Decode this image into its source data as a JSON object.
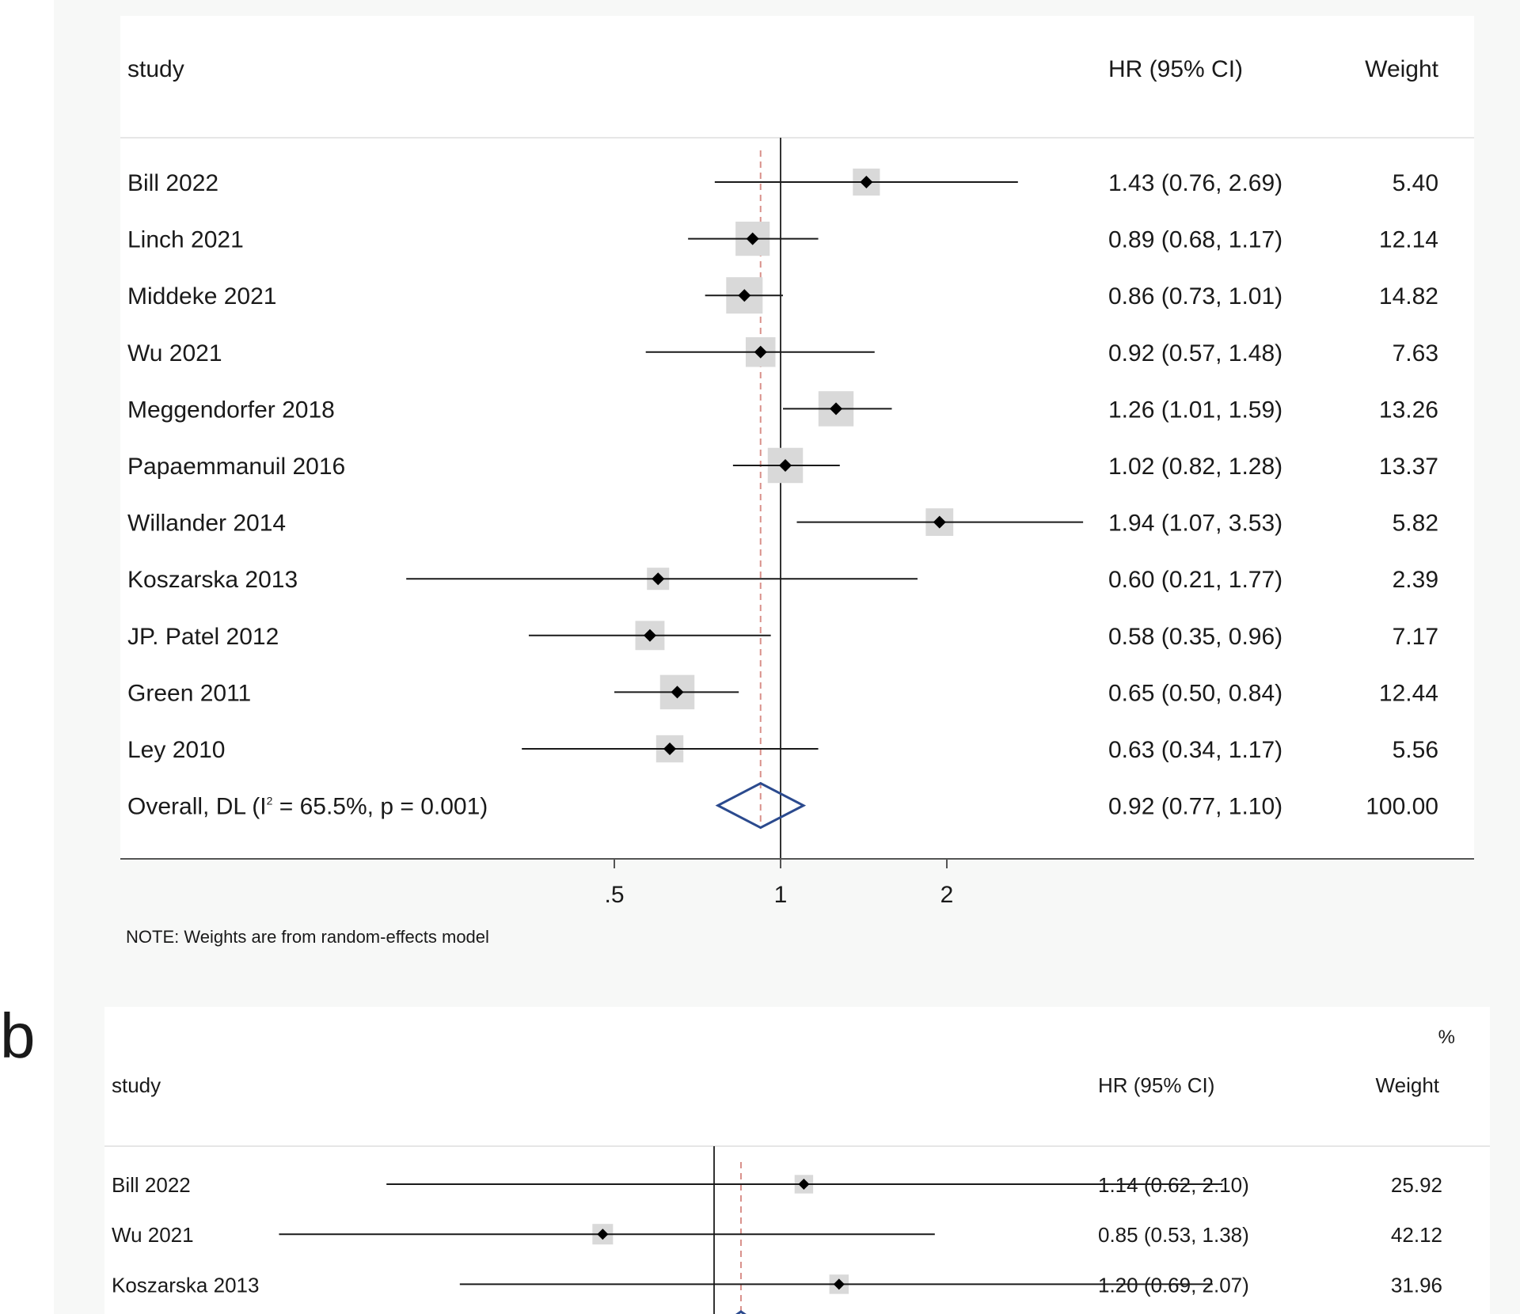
{
  "panel_b_letter": "b",
  "chart_data": [
    {
      "type": "forest",
      "x_scale": "log",
      "headers": {
        "study": "study",
        "effect": "HR (95% CI)",
        "weight": "Weight"
      },
      "null_line": 1,
      "overall_line": 0.92,
      "xticks": [
        {
          "value": 0.5,
          "label": ".5"
        },
        {
          "value": 1,
          "label": "1"
        },
        {
          "value": 2,
          "label": "2"
        }
      ],
      "studies": [
        {
          "name": "Bill 2022",
          "hr": 1.43,
          "lo": 0.76,
          "hi": 2.69,
          "ci_text": "1.43 (0.76, 2.69)",
          "weight": 5.4,
          "weight_text": "5.40"
        },
        {
          "name": "Linch 2021",
          "hr": 0.89,
          "lo": 0.68,
          "hi": 1.17,
          "ci_text": "0.89 (0.68, 1.17)",
          "weight": 12.14,
          "weight_text": "12.14"
        },
        {
          "name": "Middeke 2021",
          "hr": 0.86,
          "lo": 0.73,
          "hi": 1.01,
          "ci_text": "0.86 (0.73, 1.01)",
          "weight": 14.82,
          "weight_text": "14.82"
        },
        {
          "name": "Wu 2021",
          "hr": 0.92,
          "lo": 0.57,
          "hi": 1.48,
          "ci_text": "0.92 (0.57, 1.48)",
          "weight": 7.63,
          "weight_text": "7.63"
        },
        {
          "name": "Meggendorfer 2018",
          "hr": 1.26,
          "lo": 1.01,
          "hi": 1.59,
          "ci_text": "1.26 (1.01, 1.59)",
          "weight": 13.26,
          "weight_text": "13.26"
        },
        {
          "name": "Papaemmanuil 2016",
          "hr": 1.02,
          "lo": 0.82,
          "hi": 1.28,
          "ci_text": "1.02 (0.82, 1.28)",
          "weight": 13.37,
          "weight_text": "13.37"
        },
        {
          "name": "Willander 2014",
          "hr": 1.94,
          "lo": 1.07,
          "hi": 3.53,
          "ci_text": "1.94 (1.07, 3.53)",
          "weight": 5.82,
          "weight_text": "5.82"
        },
        {
          "name": "Koszarska 2013",
          "hr": 0.6,
          "lo": 0.21,
          "hi": 1.77,
          "ci_text": "0.60 (0.21, 1.77)",
          "weight": 2.39,
          "weight_text": "2.39"
        },
        {
          "name": "JP. Patel 2012",
          "hr": 0.58,
          "lo": 0.35,
          "hi": 0.96,
          "ci_text": "0.58 (0.35, 0.96)",
          "weight": 7.17,
          "weight_text": "7.17"
        },
        {
          "name": "Green 2011",
          "hr": 0.65,
          "lo": 0.5,
          "hi": 0.84,
          "ci_text": "0.65 (0.50, 0.84)",
          "weight": 12.44,
          "weight_text": "12.44"
        },
        {
          "name": "Ley 2010",
          "hr": 0.63,
          "lo": 0.34,
          "hi": 1.17,
          "ci_text": "0.63 (0.34, 1.17)",
          "weight": 5.56,
          "weight_text": "5.56"
        }
      ],
      "overall": {
        "label_pre": "Overall, DL (I",
        "label_sup": "2",
        "label_post": " = 65.5%, p = 0.001)",
        "hr": 0.92,
        "lo": 0.77,
        "hi": 1.1,
        "ci_text": "0.92 (0.77, 1.10)",
        "weight_text": "100.00"
      },
      "note": "NOTE: Weights are from random-effects model",
      "colors": {
        "diamond": "#2b4a8e",
        "ref_line": "#d9908a",
        "box": "#d9d9d9"
      }
    },
    {
      "type": "forest",
      "x_scale": "log",
      "headers": {
        "study": "study",
        "effect": "HR (95% CI)",
        "weight_pct": "%",
        "weight": "Weight"
      },
      "null_line": 1,
      "overall_line": 1.04,
      "studies": [
        {
          "name": "Bill 2022",
          "hr": 1.14,
          "lo": 0.62,
          "hi": 2.1,
          "ci_text": "1.14 (0.62, 2.10)",
          "weight": 25.92,
          "weight_text": "25.92"
        },
        {
          "name": "Wu 2021",
          "hr": 0.85,
          "lo": 0.53,
          "hi": 1.38,
          "ci_text": "0.85 (0.53, 1.38)",
          "weight": 42.12,
          "weight_text": "42.12"
        },
        {
          "name": "Koszarska 2013",
          "hr": 1.2,
          "lo": 0.69,
          "hi": 2.07,
          "ci_text": "1.20 (0.69, 2.07)",
          "weight": 31.96,
          "weight_text": "31.96"
        }
      ],
      "colors": {
        "diamond": "#2b4a8e",
        "ref_line": "#d9908a",
        "box": "#d9d9d9"
      }
    }
  ]
}
